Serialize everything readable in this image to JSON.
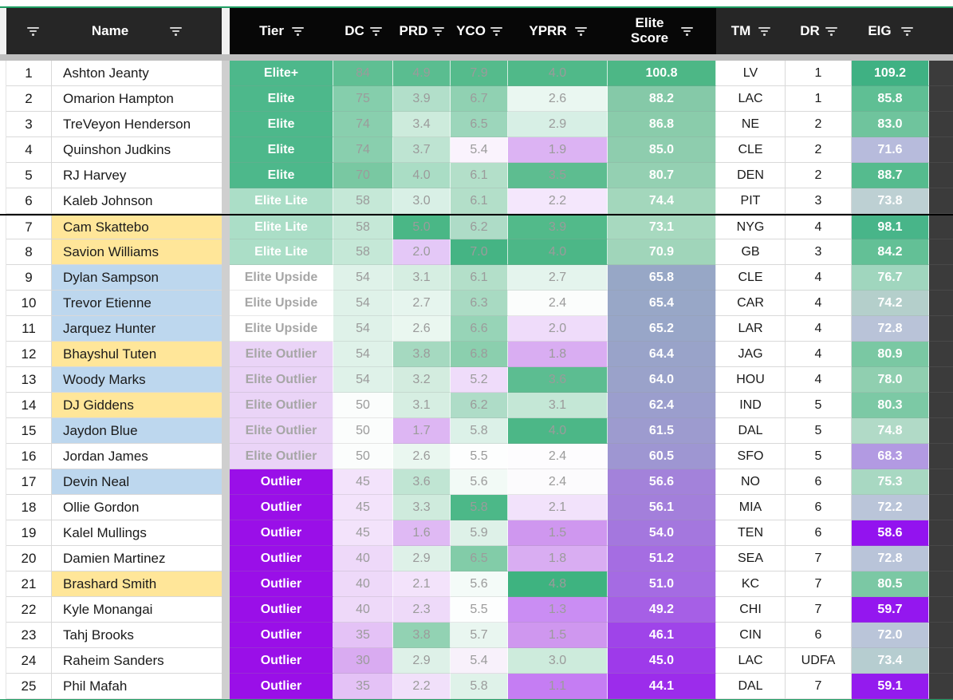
{
  "header": {
    "columns": [
      {
        "key": "rank",
        "label": ""
      },
      {
        "key": "name",
        "label": "Name"
      },
      {
        "key": "tier",
        "label": "Tier"
      },
      {
        "key": "dc",
        "label": "DC"
      },
      {
        "key": "prd",
        "label": "PRD"
      },
      {
        "key": "yco",
        "label": "YCO"
      },
      {
        "key": "yprr",
        "label": "YPRR"
      },
      {
        "key": "es",
        "label": "Elite\nScore"
      },
      {
        "key": "tm",
        "label": "TM"
      },
      {
        "key": "dr",
        "label": "DR"
      },
      {
        "key": "eig",
        "label": "EIG"
      }
    ]
  },
  "colors": {
    "tier_bg": {
      "elite": {
        "bg": "#4db88b",
        "fg": "#ffffff"
      },
      "elite_lite": {
        "bg": "#abdec7",
        "fg": "#ffffff"
      },
      "elite_upside": {
        "bg": "#ffffff",
        "fg": "#a6a6a6"
      },
      "elite_outlier": {
        "bg": "#ead4f7",
        "fg": "#a6a6a6"
      },
      "outlier": {
        "bg": "#9a0fe8",
        "fg": "#ffffff"
      }
    },
    "name_bg": {
      "white": "#ffffff",
      "yellow": "#ffe699",
      "blue": "#bdd7ee"
    },
    "metric_text": "#9b9b9b",
    "header_accent_green": "#1f9e63"
  },
  "rows": [
    {
      "rank": "1",
      "name": "Ashton Jeanty",
      "name_bg": "white",
      "tier": "Elite+",
      "tier_style": "elite",
      "dc": {
        "v": "84",
        "bg": "#5fbf93"
      },
      "prd": {
        "v": "4.9",
        "bg": "#5abd90"
      },
      "yco": {
        "v": "7.9",
        "bg": "#55bb8c"
      },
      "yprr": {
        "v": "4.0",
        "bg": "#50b989"
      },
      "es": {
        "v": "100.8",
        "bg": "#4db786"
      },
      "tm": "LV",
      "dr": "1",
      "eig": {
        "v": "109.2",
        "bg": "#3fb183"
      }
    },
    {
      "rank": "2",
      "name": "Omarion Hampton",
      "name_bg": "white",
      "tier": "Elite",
      "tier_style": "elite",
      "dc": {
        "v": "75",
        "bg": "#85ceac"
      },
      "prd": {
        "v": "3.9",
        "bg": "#b2dfca"
      },
      "yco": {
        "v": "6.7",
        "bg": "#90d1b2"
      },
      "yprr": {
        "v": "2.6",
        "bg": "#eaf7f1"
      },
      "es": {
        "v": "88.2",
        "bg": "#85c9a8"
      },
      "tm": "LAC",
      "dr": "1",
      "eig": {
        "v": "85.8",
        "bg": "#5fbf94"
      }
    },
    {
      "rank": "3",
      "name": "TreVeyon Henderson",
      "name_bg": "white",
      "tier": "Elite",
      "tier_style": "elite",
      "dc": {
        "v": "74",
        "bg": "#89cfae"
      },
      "prd": {
        "v": "3.4",
        "bg": "#cdebdc"
      },
      "yco": {
        "v": "6.5",
        "bg": "#9cd6bb"
      },
      "yprr": {
        "v": "2.9",
        "bg": "#d7efe5"
      },
      "es": {
        "v": "86.8",
        "bg": "#8accab"
      },
      "tm": "NE",
      "dr": "2",
      "eig": {
        "v": "83.0",
        "bg": "#6fc49d"
      }
    },
    {
      "rank": "4",
      "name": "Quinshon Judkins",
      "name_bg": "white",
      "tier": "Elite",
      "tier_style": "elite",
      "dc": {
        "v": "74",
        "bg": "#89cfae"
      },
      "prd": {
        "v": "3.7",
        "bg": "#bee4d2"
      },
      "yco": {
        "v": "5.4",
        "bg": "#faf3fd"
      },
      "yprr": {
        "v": "1.9",
        "bg": "#dcb3f3"
      },
      "es": {
        "v": "85.0",
        "bg": "#8ecdae"
      },
      "tm": "CLE",
      "dr": "2",
      "eig": {
        "v": "71.6",
        "bg": "#b7bbdc"
      }
    },
    {
      "rank": "5",
      "name": "RJ Harvey",
      "name_bg": "white",
      "tier": "Elite",
      "tier_style": "elite",
      "dc": {
        "v": "70",
        "bg": "#79c8a2"
      },
      "prd": {
        "v": "4.0",
        "bg": "#aaddc5"
      },
      "yco": {
        "v": "6.1",
        "bg": "#b3dfc9"
      },
      "yprr": {
        "v": "3.5",
        "bg": "#5dbd90"
      },
      "es": {
        "v": "80.7",
        "bg": "#94d0b2"
      },
      "tm": "DEN",
      "dr": "2",
      "eig": {
        "v": "88.7",
        "bg": "#55bb8e"
      }
    },
    {
      "rank": "6",
      "name": "Kaleb Johnson",
      "name_bg": "white",
      "tier": "Elite Lite",
      "tier_style": "elite_lite",
      "dc": {
        "v": "58",
        "bg": "#c5e8d7"
      },
      "prd": {
        "v": "3.0",
        "bg": "#d9f0e6"
      },
      "yco": {
        "v": "6.1",
        "bg": "#b3dfc9"
      },
      "yprr": {
        "v": "2.2",
        "bg": "#f4e7fc"
      },
      "es": {
        "v": "74.4",
        "bg": "#a3d7bc"
      },
      "tm": "PIT",
      "dr": "3",
      "eig": {
        "v": "73.8",
        "bg": "#bdd0d3"
      }
    },
    {
      "rank": "7",
      "name": "Cam Skattebo",
      "name_bg": "yellow",
      "tier": "Elite Lite",
      "tier_style": "elite_lite",
      "dc": {
        "v": "58",
        "bg": "#c5e8d7"
      },
      "prd": {
        "v": "5.0",
        "bg": "#4ab786"
      },
      "yco": {
        "v": "6.2",
        "bg": "#aedcc7"
      },
      "yprr": {
        "v": "3.9",
        "bg": "#52ba8a"
      },
      "es": {
        "v": "73.1",
        "bg": "#a7d9bf"
      },
      "tm": "NYG",
      "dr": "4",
      "eig": {
        "v": "98.1",
        "bg": "#48b589"
      }
    },
    {
      "rank": "8",
      "name": "Savion Williams",
      "name_bg": "yellow",
      "tier": "Elite Lite",
      "tier_style": "elite_lite",
      "dc": {
        "v": "58",
        "bg": "#c5e8d7"
      },
      "prd": {
        "v": "2.0",
        "bg": "#e4c8f7"
      },
      "yco": {
        "v": "7.0",
        "bg": "#45b484"
      },
      "yprr": {
        "v": "4.0",
        "bg": "#4cb787"
      },
      "es": {
        "v": "70.9",
        "bg": "#a0d5ba"
      },
      "tm": "GB",
      "dr": "3",
      "eig": {
        "v": "84.2",
        "bg": "#63c096"
      }
    },
    {
      "rank": "9",
      "name": "Dylan Sampson",
      "name_bg": "blue",
      "tier": "Elite Upside",
      "tier_style": "elite_upside",
      "dc": {
        "v": "54",
        "bg": "#dff2e9"
      },
      "prd": {
        "v": "3.1",
        "bg": "#d6eee2"
      },
      "yco": {
        "v": "6.1",
        "bg": "#b3dfc9"
      },
      "yprr": {
        "v": "2.7",
        "bg": "#e4f4ed"
      },
      "es": {
        "v": "65.8",
        "bg": "#97a7c6"
      },
      "tm": "CLE",
      "dr": "4",
      "eig": {
        "v": "76.7",
        "bg": "#a0d6be"
      }
    },
    {
      "rank": "10",
      "name": "Trevor Etienne",
      "name_bg": "blue",
      "tier": "Elite Upside",
      "tier_style": "elite_upside",
      "dc": {
        "v": "54",
        "bg": "#dff2e9"
      },
      "prd": {
        "v": "2.7",
        "bg": "#e6f5ee"
      },
      "yco": {
        "v": "6.3",
        "bg": "#a8dac2"
      },
      "yprr": {
        "v": "2.4",
        "bg": "#fbfdfc"
      },
      "es": {
        "v": "65.4",
        "bg": "#98a7c7"
      },
      "tm": "CAR",
      "dr": "4",
      "eig": {
        "v": "74.2",
        "bg": "#b4cfcb"
      }
    },
    {
      "rank": "11",
      "name": "Jarquez Hunter",
      "name_bg": "blue",
      "tier": "Elite Upside",
      "tier_style": "elite_upside",
      "dc": {
        "v": "54",
        "bg": "#dff2e9"
      },
      "prd": {
        "v": "2.6",
        "bg": "#eaf7f0"
      },
      "yco": {
        "v": "6.6",
        "bg": "#97d4b7"
      },
      "yprr": {
        "v": "2.0",
        "bg": "#efdcfa"
      },
      "es": {
        "v": "65.2",
        "bg": "#98a6c8"
      },
      "tm": "LAR",
      "dr": "4",
      "eig": {
        "v": "72.8",
        "bg": "#b9c3d8"
      }
    },
    {
      "rank": "12",
      "name": "Bhayshul Tuten",
      "name_bg": "yellow",
      "tier": "Elite Outlier",
      "tier_style": "elite_outlier",
      "dc": {
        "v": "54",
        "bg": "#dff2e9"
      },
      "prd": {
        "v": "3.8",
        "bg": "#a5d9c0"
      },
      "yco": {
        "v": "6.8",
        "bg": "#8bcfae"
      },
      "yprr": {
        "v": "1.8",
        "bg": "#d9adf2"
      },
      "es": {
        "v": "64.4",
        "bg": "#99a3c9"
      },
      "tm": "JAG",
      "dr": "4",
      "eig": {
        "v": "80.9",
        "bg": "#7ac8a3"
      }
    },
    {
      "rank": "13",
      "name": "Woody Marks",
      "name_bg": "blue",
      "tier": "Elite Outlier",
      "tier_style": "elite_outlier",
      "dc": {
        "v": "54",
        "bg": "#dff2e9"
      },
      "prd": {
        "v": "3.2",
        "bg": "#d3ecdf"
      },
      "yco": {
        "v": "5.2",
        "bg": "#efdcfa"
      },
      "yprr": {
        "v": "3.6",
        "bg": "#5cbd91"
      },
      "es": {
        "v": "64.0",
        "bg": "#9aa2ca"
      },
      "tm": "HOU",
      "dr": "4",
      "eig": {
        "v": "78.0",
        "bg": "#90cfb0"
      }
    },
    {
      "rank": "14",
      "name": "DJ Giddens",
      "name_bg": "yellow",
      "tier": "Elite Outlier",
      "tier_style": "elite_outlier",
      "dc": {
        "v": "50",
        "bg": "#fbfdfc"
      },
      "prd": {
        "v": "3.1",
        "bg": "#d6eee2"
      },
      "yco": {
        "v": "6.2",
        "bg": "#aedcc7"
      },
      "yprr": {
        "v": "3.1",
        "bg": "#c4e7d6"
      },
      "es": {
        "v": "62.4",
        "bg": "#9b9ecd"
      },
      "tm": "IND",
      "dr": "5",
      "eig": {
        "v": "80.3",
        "bg": "#7cc9a5"
      }
    },
    {
      "rank": "15",
      "name": "Jaydon Blue",
      "name_bg": "blue",
      "tier": "Elite Outlier",
      "tier_style": "elite_outlier",
      "dc": {
        "v": "50",
        "bg": "#fbfdfc"
      },
      "prd": {
        "v": "1.7",
        "bg": "#ddb6f3"
      },
      "yco": {
        "v": "5.8",
        "bg": "#dcf1e8"
      },
      "yprr": {
        "v": "4.0",
        "bg": "#4cb787"
      },
      "es": {
        "v": "61.5",
        "bg": "#9d9bcf"
      },
      "tm": "DAL",
      "dr": "5",
      "eig": {
        "v": "74.8",
        "bg": "#b1dac7"
      }
    },
    {
      "rank": "16",
      "name": "Jordan James",
      "name_bg": "white",
      "tier": "Elite Outlier",
      "tier_style": "elite_outlier",
      "dc": {
        "v": "50",
        "bg": "#fbfdfc"
      },
      "prd": {
        "v": "2.6",
        "bg": "#eaf7f0"
      },
      "yco": {
        "v": "5.5",
        "bg": "#fdfefe"
      },
      "yprr": {
        "v": "2.4",
        "bg": "#fdfcfe"
      },
      "es": {
        "v": "60.5",
        "bg": "#9e96d2"
      },
      "tm": "SFO",
      "dr": "5",
      "eig": {
        "v": "68.3",
        "bg": "#b29ae2"
      }
    },
    {
      "rank": "17",
      "name": "Devin Neal",
      "name_bg": "blue",
      "tier": "Outlier",
      "tier_style": "outlier",
      "dc": {
        "v": "45",
        "bg": "#f3e3fb"
      },
      "prd": {
        "v": "3.6",
        "bg": "#c0e5d3"
      },
      "yco": {
        "v": "5.6",
        "bg": "#f2faf6"
      },
      "yprr": {
        "v": "2.4",
        "bg": "#fcfbfd"
      },
      "es": {
        "v": "56.6",
        "bg": "#a382da"
      },
      "tm": "NO",
      "dr": "6",
      "eig": {
        "v": "75.3",
        "bg": "#a8d8c2"
      }
    },
    {
      "rank": "18",
      "name": "Ollie Gordon",
      "name_bg": "white",
      "tier": "Outlier",
      "tier_style": "outlier",
      "dc": {
        "v": "45",
        "bg": "#f3e3fb"
      },
      "prd": {
        "v": "3.3",
        "bg": "#cfebdd"
      },
      "yco": {
        "v": "5.8",
        "bg": "#4cb888"
      },
      "yprr": {
        "v": "2.1",
        "bg": "#f2e2fb"
      },
      "es": {
        "v": "56.1",
        "bg": "#a37fdb"
      },
      "tm": "MIA",
      "dr": "6",
      "eig": {
        "v": "72.2",
        "bg": "#bac5d9"
      }
    },
    {
      "rank": "19",
      "name": "Kalel Mullings",
      "name_bg": "white",
      "tier": "Outlier",
      "tier_style": "outlier",
      "dc": {
        "v": "45",
        "bg": "#f3e3fb"
      },
      "prd": {
        "v": "1.6",
        "bg": "#dfb9f4"
      },
      "yco": {
        "v": "5.9",
        "bg": "#def1e8"
      },
      "yprr": {
        "v": "1.5",
        "bg": "#cf97ef"
      },
      "es": {
        "v": "54.0",
        "bg": "#a477de"
      },
      "tm": "TEN",
      "dr": "6",
      "eig": {
        "v": "58.6",
        "bg": "#9313ef"
      }
    },
    {
      "rank": "20",
      "name": "Damien Martinez",
      "name_bg": "white",
      "tier": "Outlier",
      "tier_style": "outlier",
      "dc": {
        "v": "40",
        "bg": "#eed9f9"
      },
      "prd": {
        "v": "2.9",
        "bg": "#def1e8"
      },
      "yco": {
        "v": "6.5",
        "bg": "#82cca8"
      },
      "yprr": {
        "v": "1.8",
        "bg": "#d9adf2"
      },
      "es": {
        "v": "51.2",
        "bg": "#a56de2"
      },
      "tm": "SEA",
      "dr": "7",
      "eig": {
        "v": "72.8",
        "bg": "#b9c4d9"
      }
    },
    {
      "rank": "21",
      "name": "Brashard Smith",
      "name_bg": "yellow",
      "tier": "Outlier",
      "tier_style": "outlier",
      "dc": {
        "v": "40",
        "bg": "#eed9f9"
      },
      "prd": {
        "v": "2.1",
        "bg": "#f3e3fb"
      },
      "yco": {
        "v": "5.6",
        "bg": "#f4fbf8"
      },
      "yprr": {
        "v": "4.8",
        "bg": "#3eb380"
      },
      "es": {
        "v": "51.0",
        "bg": "#a56be3"
      },
      "tm": "KC",
      "dr": "7",
      "eig": {
        "v": "80.5",
        "bg": "#7bc8a4"
      }
    },
    {
      "rank": "22",
      "name": "Kyle Monangai",
      "name_bg": "white",
      "tier": "Outlier",
      "tier_style": "outlier",
      "dc": {
        "v": "40",
        "bg": "#eed9f9"
      },
      "prd": {
        "v": "2.3",
        "bg": "#eedaf9"
      },
      "yco": {
        "v": "5.5",
        "bg": "#fdfefe"
      },
      "yprr": {
        "v": "1.3",
        "bg": "#ca8df3"
      },
      "es": {
        "v": "49.2",
        "bg": "#a65fe6"
      },
      "tm": "CHI",
      "dr": "7",
      "eig": {
        "v": "59.7",
        "bg": "#9417ef"
      }
    },
    {
      "rank": "23",
      "name": "Tahj Brooks",
      "name_bg": "white",
      "tier": "Outlier",
      "tier_style": "outlier",
      "dc": {
        "v": "35",
        "bg": "#e4c2f6"
      },
      "prd": {
        "v": "3.8",
        "bg": "#92d2b3"
      },
      "yco": {
        "v": "5.7",
        "bg": "#e9f6f0"
      },
      "yprr": {
        "v": "1.5",
        "bg": "#cf97ef"
      },
      "es": {
        "v": "46.1",
        "bg": "#9f44e9"
      },
      "tm": "CIN",
      "dr": "6",
      "eig": {
        "v": "72.0",
        "bg": "#bac5d9"
      }
    },
    {
      "rank": "24",
      "name": "Raheim Sanders",
      "name_bg": "white",
      "tier": "Outlier",
      "tier_style": "outlier",
      "dc": {
        "v": "30",
        "bg": "#d9abf1"
      },
      "prd": {
        "v": "2.9",
        "bg": "#def1e8"
      },
      "yco": {
        "v": "5.4",
        "bg": "#f8f1fb"
      },
      "yprr": {
        "v": "3.0",
        "bg": "#cdebdc"
      },
      "es": {
        "v": "45.0",
        "bg": "#9e3aea"
      },
      "tm": "LAC",
      "dr": "UDFA",
      "eig": {
        "v": "73.4",
        "bg": "#b6cdd0"
      }
    },
    {
      "rank": "25",
      "name": "Phil Mafah",
      "name_bg": "white",
      "tier": "Outlier",
      "tier_style": "outlier",
      "dc": {
        "v": "35",
        "bg": "#e4c2f6"
      },
      "prd": {
        "v": "2.2",
        "bg": "#f1e0fa"
      },
      "yco": {
        "v": "5.8",
        "bg": "#dff2e9"
      },
      "yprr": {
        "v": "1.1",
        "bg": "#c57df3"
      },
      "es": {
        "v": "44.1",
        "bg": "#9c2ceb"
      },
      "tm": "DAL",
      "dr": "7",
      "eig": {
        "v": "59.1",
        "bg": "#941bee"
      }
    }
  ]
}
